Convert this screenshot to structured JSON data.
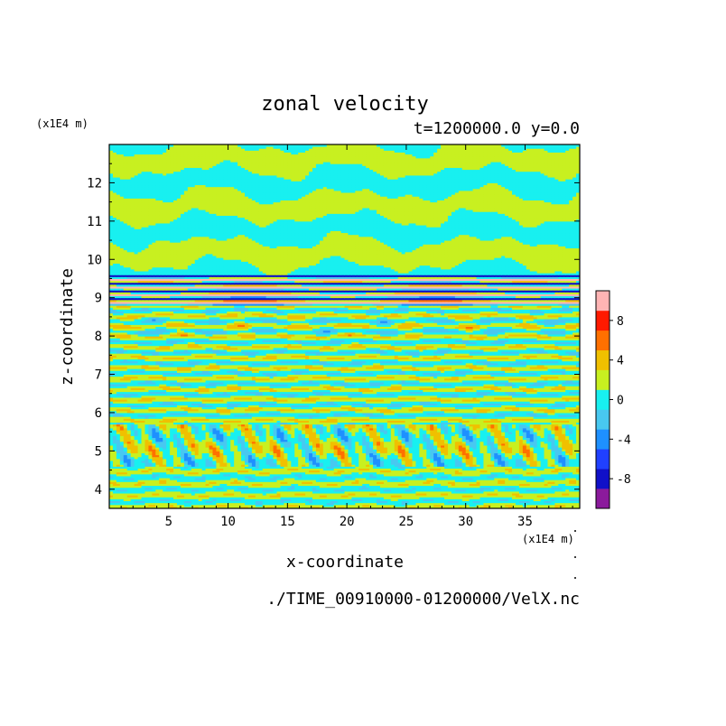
{
  "chart_data": {
    "type": "heatmap",
    "title": "zonal velocity",
    "subtitle": "t=1200000.0 y=0.0",
    "xlabel": "x-coordinate",
    "ylabel": "z-coordinate",
    "x_unit": "(x1E4 m)",
    "y_unit": "(x1E4 m)",
    "footer": "./TIME_00910000-01200000/VelX.nc",
    "xlim": [
      0,
      39.6
    ],
    "ylim": [
      3.5,
      13
    ],
    "x_ticks": [
      5,
      10,
      15,
      20,
      25,
      30,
      35
    ],
    "y_ticks": [
      4,
      5,
      6,
      7,
      8,
      9,
      10,
      11,
      12
    ],
    "colorbar": {
      "levels": [
        -10,
        -8,
        -6,
        -4,
        -2,
        0,
        2,
        4,
        6,
        8,
        10
      ],
      "tick_labels": [
        "8",
        "4",
        "0",
        "-4",
        "-8"
      ],
      "colors": [
        "#8b1a9c",
        "#1010c8",
        "#2040ff",
        "#1e90ff",
        "#48c8f0",
        "#18f0f0",
        "#c8f020",
        "#f0c000",
        "#ff7000",
        "#ff1a00",
        "#ffb4b4"
      ]
    },
    "layers": [
      {
        "zmin": 9.6,
        "zmax": 13.0,
        "description": "upper layer alternating 0..2 and -2..0 bands"
      },
      {
        "zmin": 8.8,
        "zmax": 9.6,
        "description": "strong shear layer, -10..10"
      },
      {
        "zmin": 5.7,
        "zmax": 8.8,
        "description": "layered flow, -2..2"
      },
      {
        "zmin": 4.6,
        "zmax": 5.7,
        "description": "wave band, -6..6"
      },
      {
        "zmin": 3.5,
        "zmax": 4.6,
        "description": "lower layered flow, -2..2"
      }
    ]
  }
}
